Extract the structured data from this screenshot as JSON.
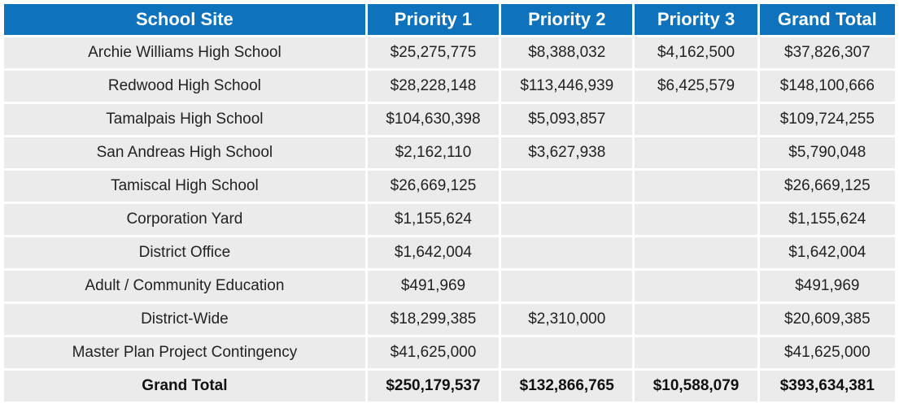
{
  "headers": [
    "School Site",
    "Priority 1",
    "Priority 2",
    "Priority 3",
    "Grand Total"
  ],
  "rows": [
    [
      "Archie Williams High School",
      "$25,275,775",
      "$8,388,032",
      "$4,162,500",
      "$37,826,307"
    ],
    [
      "Redwood High School",
      "$28,228,148",
      "$113,446,939",
      "$6,425,579",
      "$148,100,666"
    ],
    [
      "Tamalpais  High School",
      "$104,630,398",
      "$5,093,857",
      "",
      "$109,724,255"
    ],
    [
      "San Andreas  High School",
      "$2,162,110",
      "$3,627,938",
      "",
      "$5,790,048"
    ],
    [
      "Tamiscal  High School",
      "$26,669,125",
      "",
      "",
      "$26,669,125"
    ],
    [
      "Corporation Yard",
      "$1,155,624",
      "",
      "",
      "$1,155,624"
    ],
    [
      "District Office",
      "$1,642,004",
      "",
      "",
      "$1,642,004"
    ],
    [
      "Adult / Community Education",
      "$491,969",
      "",
      "",
      "$491,969"
    ],
    [
      "District-Wide",
      "$18,299,385",
      "$2,310,000",
      "",
      "$20,609,385"
    ],
    [
      "Master Plan Project Contingency",
      "$41,625,000",
      "",
      "",
      "$41,625,000"
    ]
  ],
  "total": [
    "Grand Total",
    "$250,179,537",
    "$132,866,765",
    "$10,588,079",
    "$393,634,381"
  ]
}
